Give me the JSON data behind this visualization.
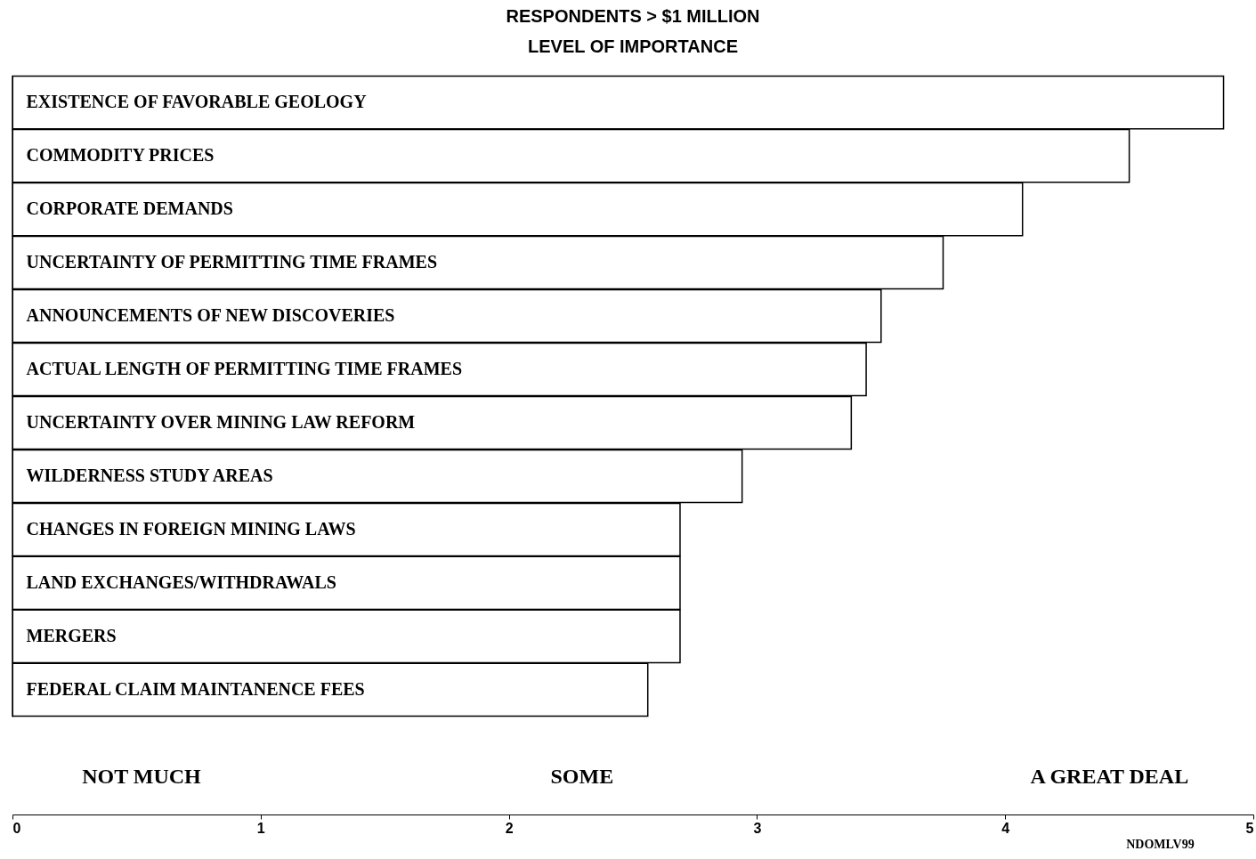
{
  "chart_data": {
    "type": "bar",
    "orientation": "horizontal",
    "title": "RESPONDENTS > $1 MILLION",
    "subtitle": "LEVEL OF IMPORTANCE",
    "categories": [
      "EXISTENCE OF FAVORABLE GEOLOGY",
      "COMMODITY PRICES",
      "CORPORATE DEMANDS",
      "UNCERTAINTY OF PERMITTING TIME FRAMES",
      "ANNOUNCEMENTS OF NEW DISCOVERIES",
      "ACTUAL LENGTH OF PERMITTING TIME FRAMES",
      "UNCERTAINTY OVER MINING LAW REFORM",
      "WILDERNESS STUDY AREAS",
      "CHANGES IN FOREIGN MINING LAWS",
      "LAND EXCHANGES/WITHDRAWALS",
      "MERGERS",
      "FEDERAL CLAIM MAINTANENCE FEES"
    ],
    "values": [
      4.88,
      4.5,
      4.07,
      3.75,
      3.5,
      3.44,
      3.38,
      2.94,
      2.69,
      2.69,
      2.69,
      2.56
    ],
    "color": "#ffffff",
    "xlim": [
      0,
      5
    ],
    "xticks": [
      0,
      1,
      2,
      3,
      4,
      5
    ],
    "annotations": [
      "NOT MUCH",
      "SOME",
      "A GREAT DEAL",
      "NDOMLV99"
    ],
    "grid": false
  }
}
